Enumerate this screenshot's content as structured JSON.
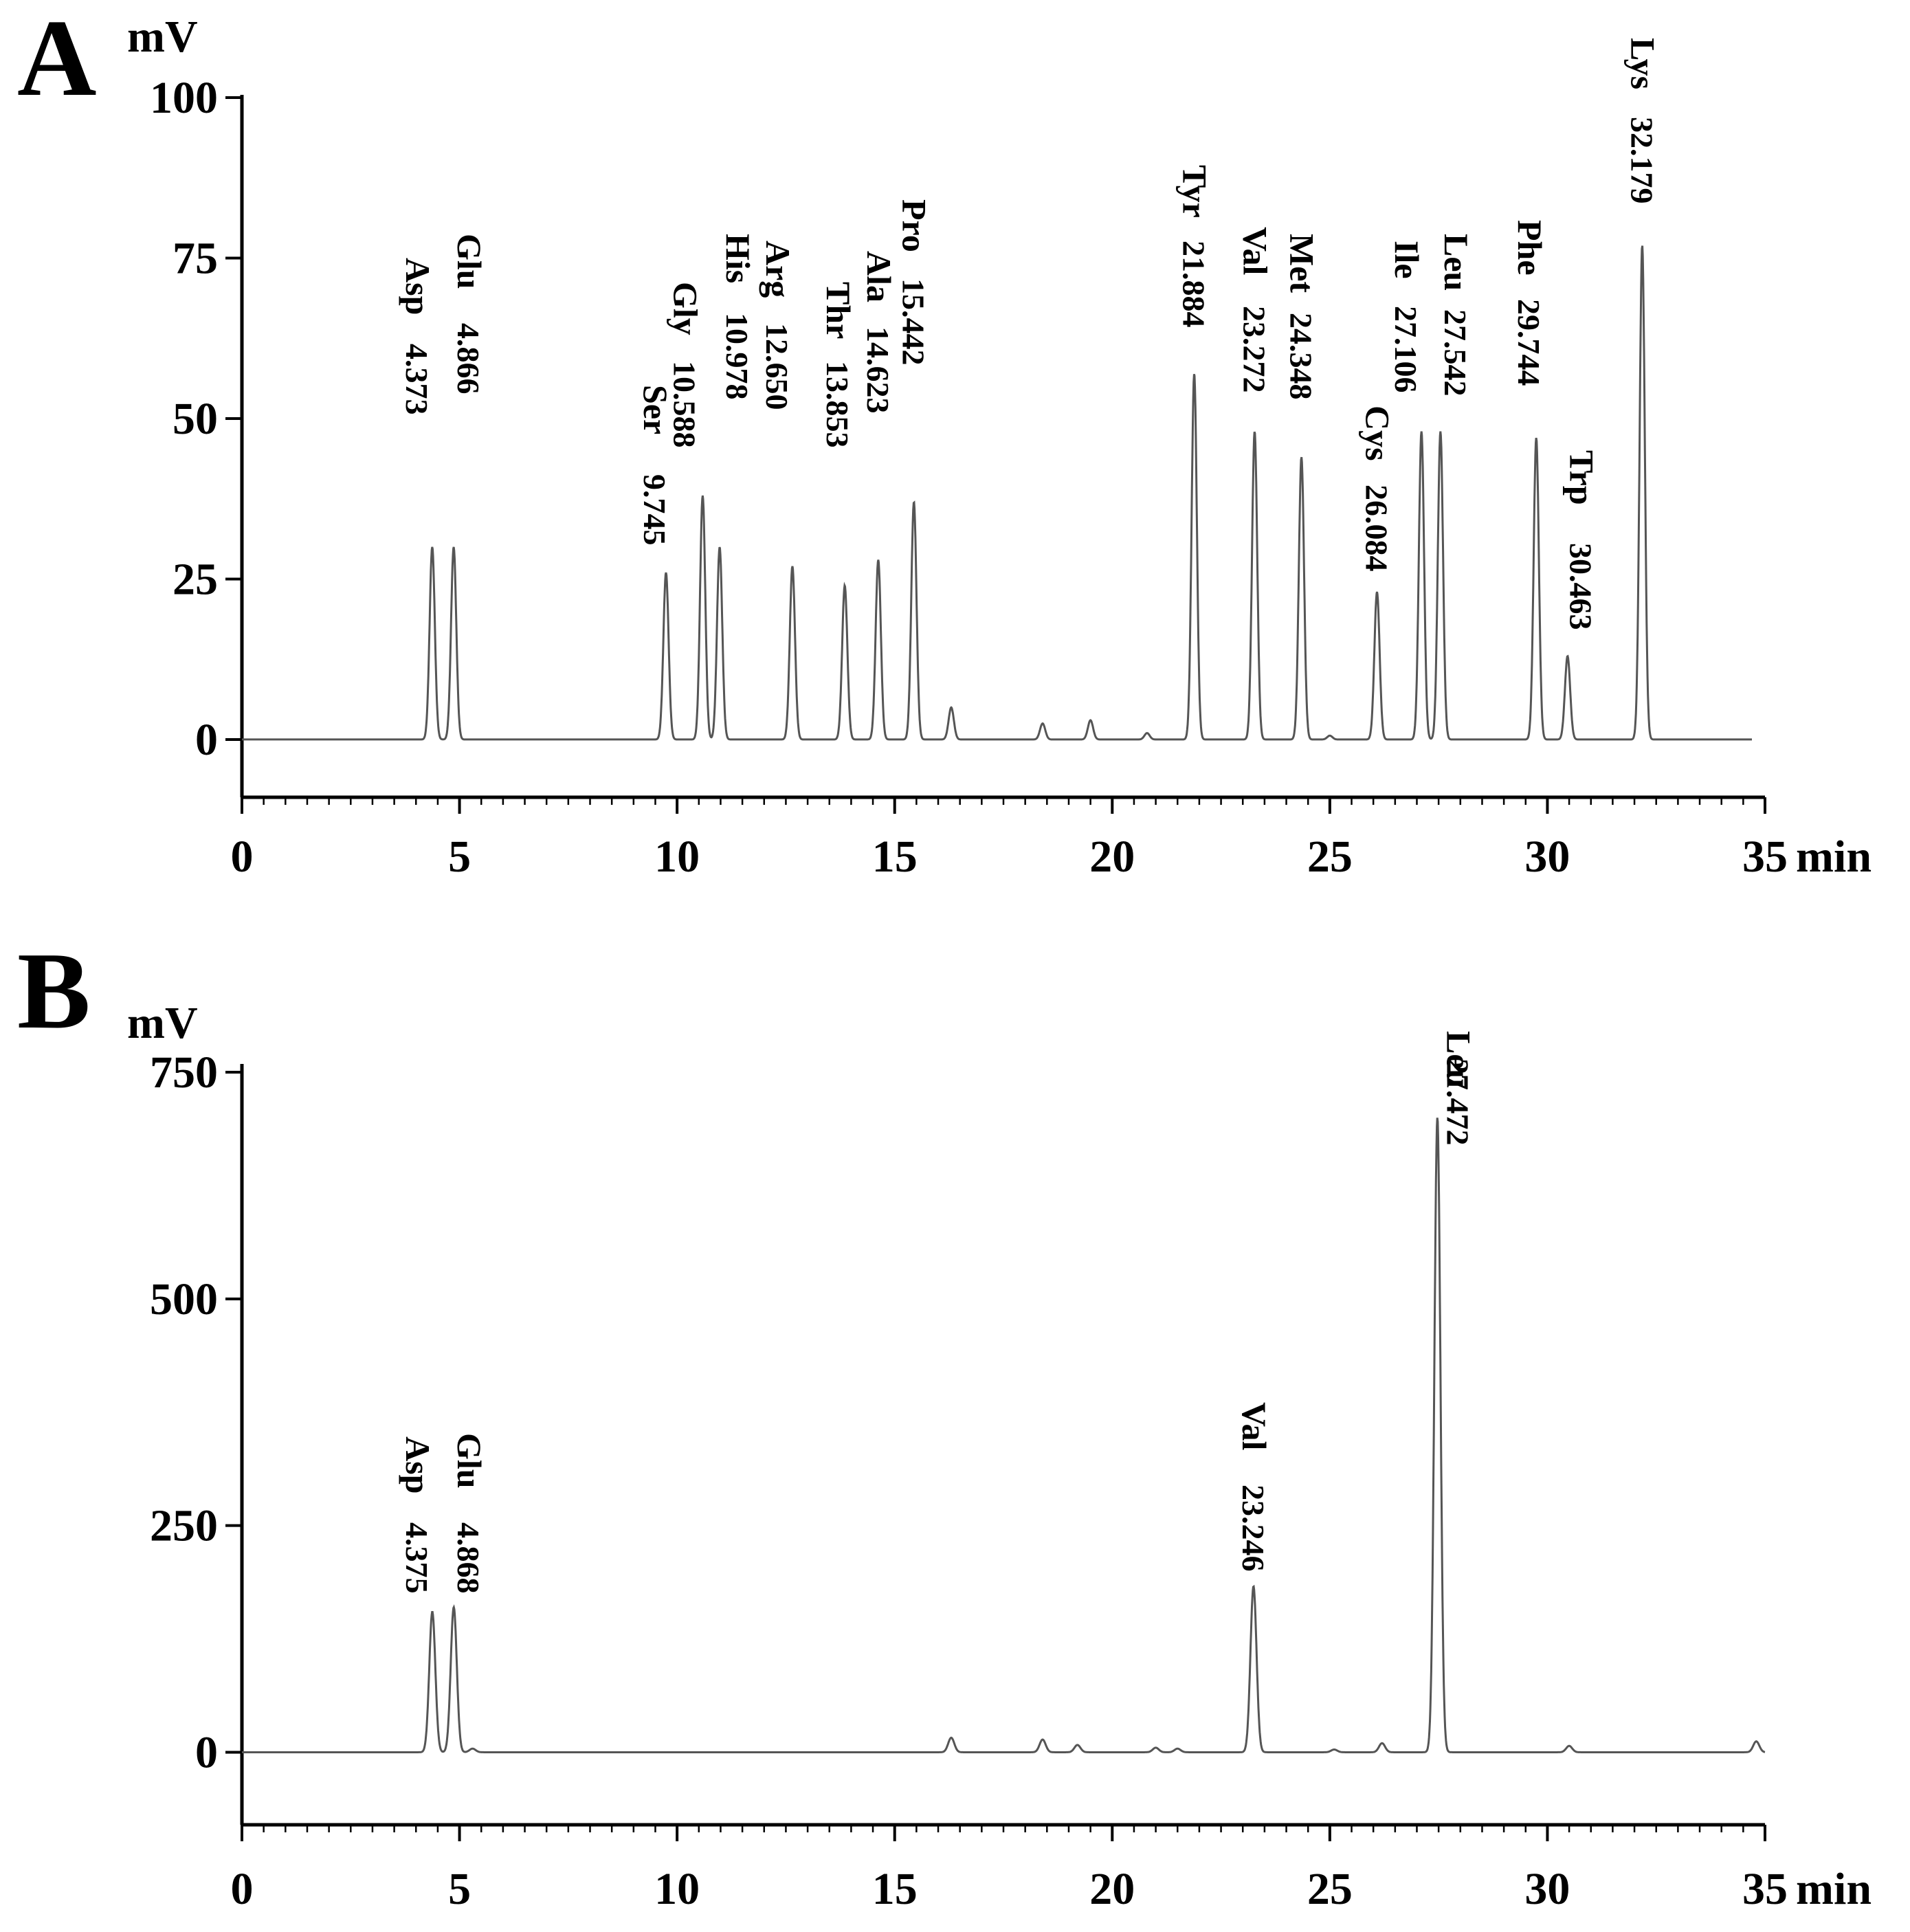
{
  "chart_data": [
    {
      "panel": "A",
      "type": "line",
      "ylabel": "mV",
      "xlabel": "min",
      "xlim": [
        0,
        35
      ],
      "ylim": [
        -9,
        100
      ],
      "xticks": [
        0,
        5,
        10,
        15,
        20,
        25,
        30,
        35
      ],
      "xtick_labels": [
        "0",
        "5",
        "10",
        "15",
        "20",
        "25",
        "30",
        "35"
      ],
      "yticks": [
        0,
        25,
        50,
        75,
        100
      ],
      "ytick_labels": [
        "0",
        "25",
        "50",
        "75",
        "100"
      ],
      "baseline_end": 34.7,
      "peaks": [
        {
          "name": "Asp",
          "time": "4.373",
          "x": 4.373,
          "y": 30
        },
        {
          "name": "Glu",
          "time": "4.866",
          "x": 4.866,
          "y": 30
        },
        {
          "name": "Ser",
          "time": "9.745",
          "x": 9.745,
          "y": 26
        },
        {
          "name": "Gly",
          "time": "10.588",
          "x": 10.588,
          "y": 38
        },
        {
          "name": "His",
          "time": "10.978",
          "x": 10.978,
          "y": 30
        },
        {
          "name": "Arg",
          "time": "12.650",
          "x": 12.65,
          "y": 27
        },
        {
          "name": "Thr",
          "time": "13.853",
          "x": 13.853,
          "y": 24
        },
        {
          "name": "Ala",
          "time": "14.623",
          "x": 14.623,
          "y": 28
        },
        {
          "name": "Pro",
          "time": "15.442",
          "x": 15.442,
          "y": 37
        },
        {
          "name": "Tyr",
          "time": "21.884",
          "x": 21.884,
          "y": 57
        },
        {
          "name": "Val",
          "time": "23.272",
          "x": 23.272,
          "y": 48
        },
        {
          "name": "Met",
          "time": "24.348",
          "x": 24.348,
          "y": 44
        },
        {
          "name": "Cys",
          "time": "26.084",
          "x": 26.084,
          "y": 23
        },
        {
          "name": "Ile",
          "time": "27.106",
          "x": 27.106,
          "y": 48
        },
        {
          "name": "Leu",
          "time": "27.542",
          "x": 27.542,
          "y": 48
        },
        {
          "name": "Phe",
          "time": "29.744",
          "x": 29.744,
          "y": 47
        },
        {
          "name": "Trp",
          "time": "30.463",
          "x": 30.463,
          "y": 13
        },
        {
          "name": "Lys",
          "time": "32.179",
          "x": 32.179,
          "y": 77
        }
      ],
      "minor_peaks": [
        {
          "x": 16.3,
          "y": 5
        },
        {
          "x": 18.4,
          "y": 2.5
        },
        {
          "x": 19.5,
          "y": 3
        },
        {
          "x": 20.8,
          "y": 1
        },
        {
          "x": 25.0,
          "y": 0.6
        }
      ]
    },
    {
      "panel": "B",
      "type": "line",
      "ylabel": "mV",
      "xlabel": "min",
      "xlim": [
        0,
        35
      ],
      "ylim": [
        -80,
        750
      ],
      "xticks": [
        0,
        5,
        10,
        15,
        20,
        25,
        30,
        35
      ],
      "xtick_labels": [
        "0",
        "5",
        "10",
        "15",
        "20",
        "25",
        "30",
        "35"
      ],
      "yticks": [
        0,
        250,
        500,
        750
      ],
      "ytick_labels": [
        "0",
        "250",
        "500",
        "750"
      ],
      "baseline_end": 35,
      "peaks": [
        {
          "name": "Asp",
          "time": "4.375",
          "x": 4.375,
          "y": 155
        },
        {
          "name": "Glu",
          "time": "4.868",
          "x": 4.868,
          "y": 160
        },
        {
          "name": "Val",
          "time": "23.246",
          "x": 23.246,
          "y": 183
        },
        {
          "name": "Leu",
          "time": "27.472",
          "x": 27.472,
          "y": 700
        }
      ],
      "minor_peaks": [
        {
          "x": 5.3,
          "y": 4
        },
        {
          "x": 16.3,
          "y": 16
        },
        {
          "x": 18.4,
          "y": 14
        },
        {
          "x": 19.2,
          "y": 8
        },
        {
          "x": 21.0,
          "y": 5
        },
        {
          "x": 21.5,
          "y": 4
        },
        {
          "x": 25.1,
          "y": 3
        },
        {
          "x": 26.2,
          "y": 10
        },
        {
          "x": 30.5,
          "y": 7
        },
        {
          "x": 34.8,
          "y": 12
        }
      ]
    }
  ]
}
